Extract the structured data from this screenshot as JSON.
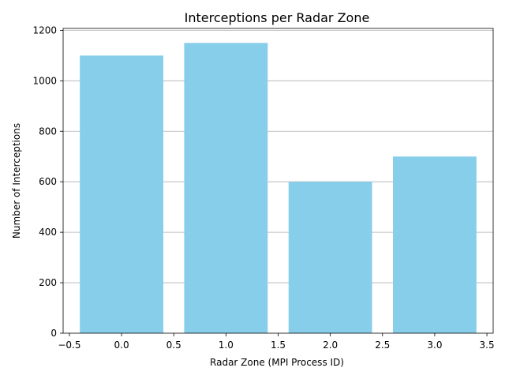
{
  "chart_data": {
    "type": "bar",
    "title": "Interceptions per Radar Zone",
    "xlabel": "Radar Zone (MPI Process ID)",
    "ylabel": "Number of Interceptions",
    "x": [
      0,
      1,
      2,
      3
    ],
    "values": [
      1100,
      1150,
      600,
      700
    ],
    "bar_width": 0.8,
    "xlim": [
      -0.56,
      3.56
    ],
    "ylim": [
      0,
      1207.5
    ],
    "xticks": [
      "−0.5",
      "0.0",
      "0.5",
      "1.0",
      "1.5",
      "2.0",
      "2.5",
      "3.0",
      "3.5"
    ],
    "yticks": [
      "0",
      "200",
      "400",
      "600",
      "800",
      "1000",
      "1200"
    ],
    "grid": "y-major",
    "bar_color": "#87ceeb",
    "grid_color": "#b0b0b0"
  }
}
